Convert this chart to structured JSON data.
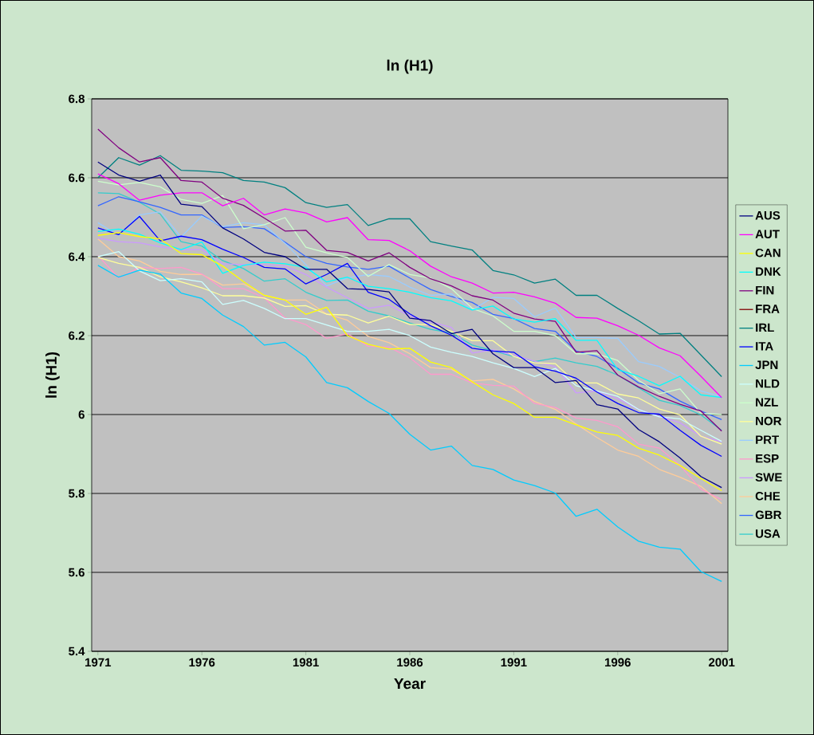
{
  "chart_data": {
    "type": "line",
    "title": "ln (H1)",
    "xlabel": "Year",
    "ylabel": "ln (H1)",
    "x": [
      1971,
      1972,
      1973,
      1974,
      1975,
      1976,
      1977,
      1978,
      1979,
      1980,
      1981,
      1982,
      1983,
      1984,
      1985,
      1986,
      1987,
      1988,
      1989,
      1990,
      1991,
      1992,
      1993,
      1994,
      1995,
      1996,
      1997,
      1998,
      1999,
      2000,
      2001
    ],
    "xlim": [
      1970.7,
      2001.3
    ],
    "xticks": [
      1971,
      1976,
      1981,
      1986,
      1991,
      1996,
      2001
    ],
    "ylim": [
      5.4,
      6.8
    ],
    "yticks": [
      5.4,
      5.6,
      5.8,
      6,
      6.2,
      6.4,
      6.6,
      6.8
    ],
    "grid": "y",
    "legend": "right",
    "marker": "none",
    "line_style": "solid",
    "series": [
      {
        "name": "AUS",
        "color": "#000080",
        "values": [
          6.64,
          6.607,
          6.591,
          6.607,
          6.533,
          6.527,
          6.473,
          6.445,
          6.411,
          6.4,
          6.368,
          6.368,
          6.319,
          6.317,
          6.311,
          6.244,
          6.238,
          6.205,
          6.216,
          6.154,
          6.119,
          6.119,
          6.081,
          6.086,
          6.025,
          6.014,
          5.962,
          5.931,
          5.89,
          5.843,
          5.815
        ]
      },
      {
        "name": "AUT",
        "color": "#ff00ff",
        "values": [
          6.61,
          6.585,
          6.543,
          6.556,
          6.562,
          6.562,
          6.529,
          6.548,
          6.506,
          6.521,
          6.511,
          6.488,
          6.499,
          6.443,
          6.441,
          6.415,
          6.376,
          6.349,
          6.333,
          6.308,
          6.31,
          6.298,
          6.282,
          6.246,
          6.244,
          6.225,
          6.201,
          6.169,
          6.149,
          6.097,
          6.043
        ]
      },
      {
        "name": "CAN",
        "color": "#ffff00",
        "values": [
          6.454,
          6.461,
          6.451,
          6.445,
          6.408,
          6.405,
          6.376,
          6.337,
          6.302,
          6.29,
          6.254,
          6.272,
          6.2,
          6.178,
          6.166,
          6.168,
          6.133,
          6.119,
          6.083,
          6.05,
          6.028,
          5.993,
          5.993,
          5.974,
          5.956,
          5.947,
          5.915,
          5.897,
          5.871,
          5.838,
          5.807
        ]
      },
      {
        "name": "DNK",
        "color": "#00ffff",
        "values": [
          6.464,
          6.47,
          6.457,
          6.435,
          6.418,
          6.437,
          6.358,
          6.378,
          6.386,
          6.382,
          6.373,
          6.336,
          6.348,
          6.325,
          6.319,
          6.31,
          6.296,
          6.288,
          6.265,
          6.275,
          6.242,
          6.234,
          6.243,
          6.188,
          6.188,
          6.114,
          6.097,
          6.073,
          6.097,
          6.05,
          6.043
        ]
      },
      {
        "name": "FIN",
        "color": "#800080",
        "values": [
          6.723,
          6.676,
          6.64,
          6.651,
          6.593,
          6.589,
          6.548,
          6.53,
          6.498,
          6.465,
          6.467,
          6.416,
          6.411,
          6.389,
          6.41,
          6.373,
          6.344,
          6.326,
          6.301,
          6.29,
          6.257,
          6.242,
          6.236,
          6.158,
          6.162,
          6.1,
          6.07,
          6.046,
          6.026,
          6.009,
          5.958
        ]
      },
      {
        "name": "FRA",
        "color": "#800000",
        "values": [
          null,
          null,
          null,
          null,
          null,
          null,
          null,
          null,
          null,
          null,
          null,
          null,
          null,
          null,
          null,
          null,
          null,
          null,
          null,
          null,
          null,
          null,
          null,
          null,
          null,
          null,
          null,
          null,
          null,
          null,
          null
        ]
      },
      {
        "name": "IRL",
        "color": "#008080",
        "values": [
          6.6,
          6.651,
          6.632,
          6.656,
          6.619,
          6.617,
          6.613,
          6.593,
          6.589,
          6.575,
          6.537,
          6.525,
          6.532,
          6.479,
          6.496,
          6.496,
          6.438,
          6.427,
          6.417,
          6.365,
          6.354,
          6.333,
          6.343,
          6.302,
          6.302,
          6.269,
          6.238,
          6.204,
          6.206,
          6.151,
          6.096
        ]
      },
      {
        "name": "ITA",
        "color": "#0000ff",
        "values": [
          6.473,
          6.456,
          6.502,
          6.44,
          6.452,
          6.443,
          6.419,
          6.398,
          6.373,
          6.369,
          6.331,
          6.355,
          6.383,
          6.31,
          6.292,
          6.255,
          6.225,
          6.201,
          6.168,
          6.161,
          6.158,
          6.121,
          6.11,
          6.092,
          6.057,
          6.028,
          6.005,
          6.001,
          5.96,
          5.922,
          5.894
        ]
      },
      {
        "name": "JPN",
        "color": "#00ccff",
        "values": [
          6.378,
          6.348,
          6.366,
          6.356,
          6.308,
          6.294,
          6.252,
          6.223,
          6.176,
          6.183,
          6.146,
          6.081,
          6.068,
          6.033,
          6.003,
          5.95,
          5.91,
          5.92,
          5.871,
          5.861,
          5.834,
          5.82,
          5.801,
          5.742,
          5.76,
          5.715,
          5.679,
          5.664,
          5.659,
          5.602,
          5.577
        ]
      },
      {
        "name": "NLD",
        "color": "#ccffff",
        "values": [
          6.4,
          6.413,
          6.364,
          6.339,
          6.344,
          6.336,
          6.279,
          6.289,
          6.269,
          6.243,
          6.243,
          6.227,
          6.211,
          6.211,
          6.216,
          6.2,
          6.171,
          6.158,
          6.147,
          6.131,
          6.117,
          6.096,
          6.117,
          6.073,
          6.06,
          6.046,
          6.013,
          5.994,
          5.989,
          5.96,
          5.932
        ]
      },
      {
        "name": "NZL",
        "color": "#ccffcc",
        "values": [
          6.591,
          6.582,
          6.588,
          6.577,
          6.545,
          6.535,
          6.555,
          6.471,
          6.481,
          6.499,
          6.424,
          6.41,
          6.398,
          6.35,
          6.38,
          6.355,
          6.346,
          6.319,
          6.269,
          6.25,
          6.211,
          6.211,
          6.2,
          6.154,
          6.154,
          6.137,
          6.087,
          6.053,
          6.065,
          6.003,
          6.0
        ]
      },
      {
        "name": "NOR",
        "color": "#ffff99",
        "values": [
          6.398,
          6.383,
          6.373,
          6.349,
          6.336,
          6.321,
          6.301,
          6.301,
          6.295,
          6.274,
          6.276,
          6.254,
          6.252,
          6.232,
          6.249,
          6.228,
          6.228,
          6.211,
          6.187,
          6.187,
          6.147,
          6.131,
          6.129,
          6.08,
          6.08,
          6.052,
          6.042,
          6.014,
          5.999,
          5.945,
          5.925
        ]
      },
      {
        "name": "PRT",
        "color": "#99ccff",
        "values": [
          6.486,
          6.454,
          6.506,
          6.514,
          6.45,
          6.503,
          6.476,
          6.486,
          6.481,
          6.434,
          6.38,
          6.326,
          6.346,
          6.355,
          6.35,
          6.323,
          6.302,
          6.306,
          6.265,
          6.297,
          6.294,
          6.248,
          6.27,
          6.195,
          6.195,
          6.193,
          6.134,
          6.122,
          6.094,
          6.06,
          6.045
        ]
      },
      {
        "name": "ESP",
        "color": "#ff99cc",
        "values": [
          6.403,
          6.346,
          6.373,
          6.37,
          6.373,
          6.356,
          6.319,
          6.319,
          6.296,
          6.245,
          6.228,
          6.193,
          6.205,
          6.173,
          6.171,
          6.144,
          6.102,
          6.102,
          6.08,
          6.074,
          6.072,
          6.028,
          6.018,
          5.991,
          5.985,
          5.969,
          5.925,
          5.915,
          5.871,
          5.811,
          5.784
        ]
      },
      {
        "name": "SWE",
        "color": "#cc99ff",
        "values": [
          6.447,
          6.438,
          6.435,
          6.425,
          6.418,
          6.418,
          6.382,
          6.38,
          6.38,
          6.376,
          6.355,
          6.323,
          6.296,
          6.269,
          6.277,
          6.25,
          6.235,
          6.221,
          6.156,
          6.164,
          6.15,
          6.135,
          6.121,
          6.055,
          6.06,
          6.04,
          6.013,
          5.996,
          5.979,
          5.945,
          5.931
        ]
      },
      {
        "name": "CHE",
        "color": "#ffcc99",
        "values": [
          6.445,
          6.4,
          6.389,
          6.363,
          6.355,
          6.355,
          6.328,
          6.331,
          6.302,
          6.29,
          6.29,
          6.255,
          6.239,
          6.198,
          6.182,
          6.154,
          6.119,
          6.115,
          6.085,
          6.089,
          6.065,
          6.033,
          6.013,
          5.976,
          5.942,
          5.91,
          5.894,
          5.861,
          5.841,
          5.818,
          5.774
        ]
      },
      {
        "name": "GBR",
        "color": "#3366ff",
        "values": [
          6.529,
          6.552,
          6.539,
          6.525,
          6.506,
          6.506,
          6.474,
          6.476,
          6.471,
          6.437,
          6.4,
          6.383,
          6.374,
          6.368,
          6.376,
          6.346,
          6.317,
          6.299,
          6.284,
          6.254,
          6.243,
          6.218,
          6.211,
          6.161,
          6.147,
          6.117,
          6.08,
          6.065,
          6.034,
          6.009,
          5.987
        ]
      },
      {
        "name": "USA",
        "color": "#33cccc",
        "values": [
          6.562,
          6.56,
          6.538,
          6.508,
          6.438,
          6.427,
          6.39,
          6.37,
          6.338,
          6.344,
          6.31,
          6.289,
          6.29,
          6.262,
          6.25,
          6.232,
          6.216,
          6.207,
          6.176,
          6.162,
          6.147,
          6.134,
          6.143,
          6.131,
          6.122,
          6.1,
          6.068,
          6.036,
          6.023,
          5.999,
          5.96
        ]
      }
    ]
  }
}
